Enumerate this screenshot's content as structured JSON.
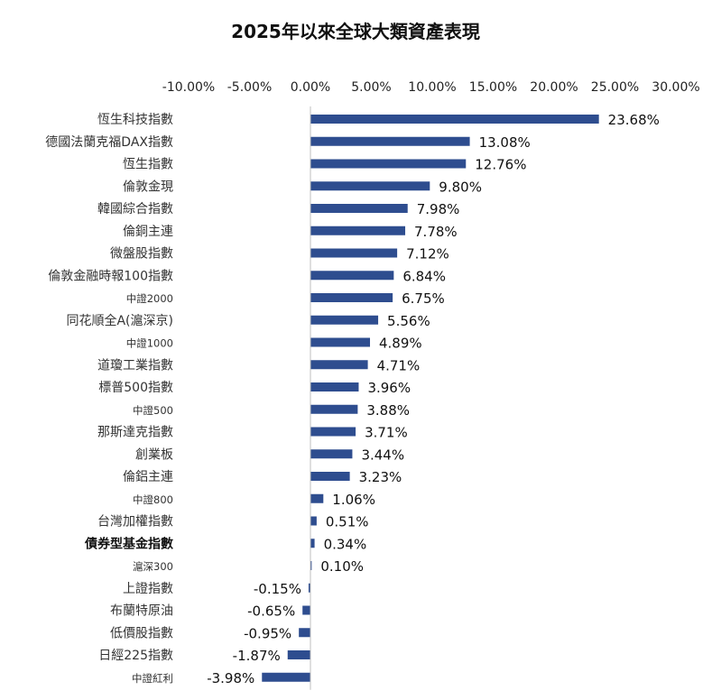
{
  "colors": {
    "bar": "#2E4D8F",
    "axis": "#BFBFBF"
  },
  "chart_data": {
    "type": "bar",
    "orientation": "horizontal",
    "title": "2025年以來全球大類資產表現",
    "xlim": [
      -10,
      30
    ],
    "xticks": [
      "-10.00%",
      "-5.00%",
      "0.00%",
      "5.00%",
      "10.00%",
      "15.00%",
      "20.00%",
      "25.00%",
      "30.00%"
    ],
    "xaxis_position": "top",
    "grid": false,
    "categories": [
      "恆生科技指數",
      "德國法蘭克福DAX指數",
      "恆生指數",
      "倫敦金現",
      "韓國綜合指數",
      "倫銅主連",
      "微盤股指數",
      "倫敦金融時報100指數",
      "中證2000",
      "同花順全A(滬深京)",
      "中證1000",
      "道瓊工業指數",
      "標普500指數",
      "中證500",
      "那斯達克指數",
      "創業板",
      "倫鋁主連",
      "中證800",
      "台灣加權指數",
      "債券型基金指數",
      "滬深300",
      "上證指數",
      "布蘭特原油",
      "低價股指數",
      "日經225指數",
      "中證紅利"
    ],
    "values": [
      23.68,
      13.08,
      12.76,
      9.8,
      7.98,
      7.78,
      7.12,
      6.84,
      6.75,
      5.56,
      4.89,
      4.71,
      3.96,
      3.88,
      3.71,
      3.44,
      3.23,
      1.06,
      0.51,
      0.34,
      0.1,
      -0.15,
      -0.65,
      -0.95,
      -1.87,
      -3.98
    ],
    "data_labels": [
      "23.68%",
      "13.08%",
      "12.76%",
      "9.80%",
      "7.98%",
      "7.78%",
      "7.12%",
      "6.84%",
      "6.75%",
      "5.56%",
      "4.89%",
      "4.71%",
      "3.96%",
      "3.88%",
      "3.71%",
      "3.44%",
      "3.23%",
      "1.06%",
      "0.51%",
      "0.34%",
      "0.10%",
      "-0.15%",
      "-0.65%",
      "-0.95%",
      "-1.87%",
      "-3.98%"
    ]
  }
}
